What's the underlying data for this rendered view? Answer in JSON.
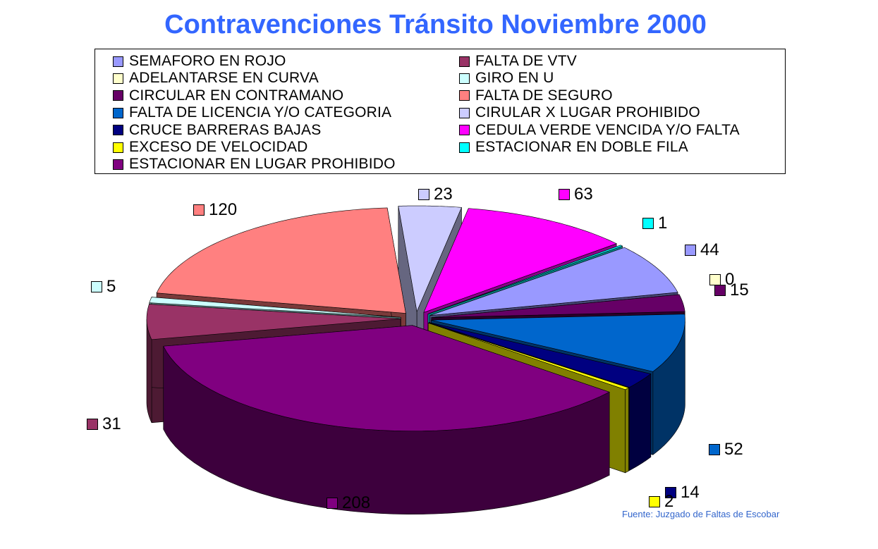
{
  "chart_data": {
    "type": "pie",
    "title": "Contravenciones Tránsito Noviembre 2000",
    "source": "Fuente: Juzgado de Faltas de Escobar",
    "legend_position": "top",
    "categories": [
      "SEMAFORO EN ROJO",
      "ADELANTARSE EN CURVA",
      "CIRCULAR EN CONTRAMANO",
      "FALTA DE LICENCIA Y/O CATEGORIA",
      "CRUCE BARRERAS BAJAS",
      "EXCESO DE VELOCIDAD",
      "ESTACIONAR EN LUGAR PROHIBIDO",
      "FALTA DE VTV",
      "GIRO EN U",
      "FALTA DE SEGURO",
      "CIRULAR X LUGAR PROHIBIDO",
      "CEDULA VERDE VENCIDA Y/O FALTA",
      "ESTACIONAR EN DOBLE FILA"
    ],
    "values": [
      44,
      0,
      15,
      52,
      14,
      2,
      208,
      31,
      5,
      120,
      23,
      63,
      1
    ],
    "data_labels": [
      "44",
      "0",
      "15",
      "52",
      "14",
      "2",
      "208",
      "31",
      "5",
      "120",
      "23",
      "63",
      "1"
    ],
    "colors": [
      "#9999ff",
      "#ffffcc",
      "#660066",
      "#0066cc",
      "#000080",
      "#ffff00",
      "#800080",
      "#993366",
      "#ccffff",
      "#ff8080",
      "#ccccff",
      "#ff00ff",
      "#00ffff"
    ],
    "side_colors": [
      "#474775",
      "#d4d4aa",
      "#2a002a",
      "#003366",
      "#000040",
      "#808000",
      "#3d003d",
      "#4d1a33",
      "#5f8585",
      "#7a3a3a",
      "#666680",
      "#8a008a",
      "#008080"
    ]
  },
  "legend": {
    "left_column": [
      0,
      1,
      2,
      3,
      4,
      5,
      6
    ],
    "right_column": [
      7,
      8,
      9,
      10,
      11,
      12
    ]
  }
}
